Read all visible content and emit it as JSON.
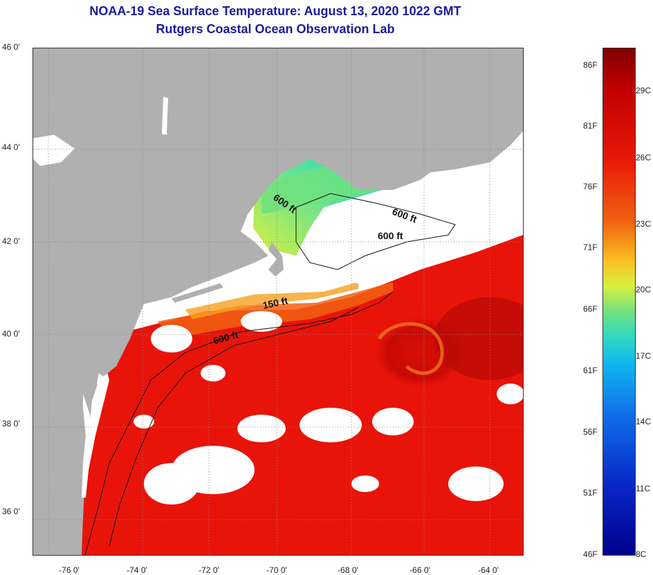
{
  "header": {
    "title_line1": "NOAA-19 Sea Surface Temperature:  August 13, 2020 1022 GMT",
    "title_line2": "Rutgers Coastal Ocean Observation Lab"
  },
  "latitude_labels": [
    "46 0'",
    "44 0'",
    "42 0'",
    "40 0'",
    "38 0'",
    "36 0'"
  ],
  "longitude_labels": [
    "-76 0'",
    "-74 0'",
    "-72 0'",
    "-70 0'",
    "-68 0'",
    "-66 0'",
    "-64 0'"
  ],
  "contours": {
    "label_600_a": "600 ft",
    "label_600_b": "600 ft",
    "label_600_c": "600 ft",
    "label_150": "150 ft",
    "label_600_d": "600 ft"
  },
  "colorbar": {
    "fahrenheit_labels": [
      "86F",
      "81F",
      "76F",
      "71F",
      "66F",
      "61F",
      "56F",
      "51F",
      "46F"
    ],
    "celsius_labels": [
      "29C",
      "26C",
      "23C",
      "20C",
      "17C",
      "14C",
      "11C",
      "8C"
    ]
  },
  "colors": {
    "title": "#1a1aa0",
    "land": "#b0b0b0",
    "cloud": "#ffffff",
    "warm_water": "#e8140a",
    "cold_water": "#1840d0"
  }
}
